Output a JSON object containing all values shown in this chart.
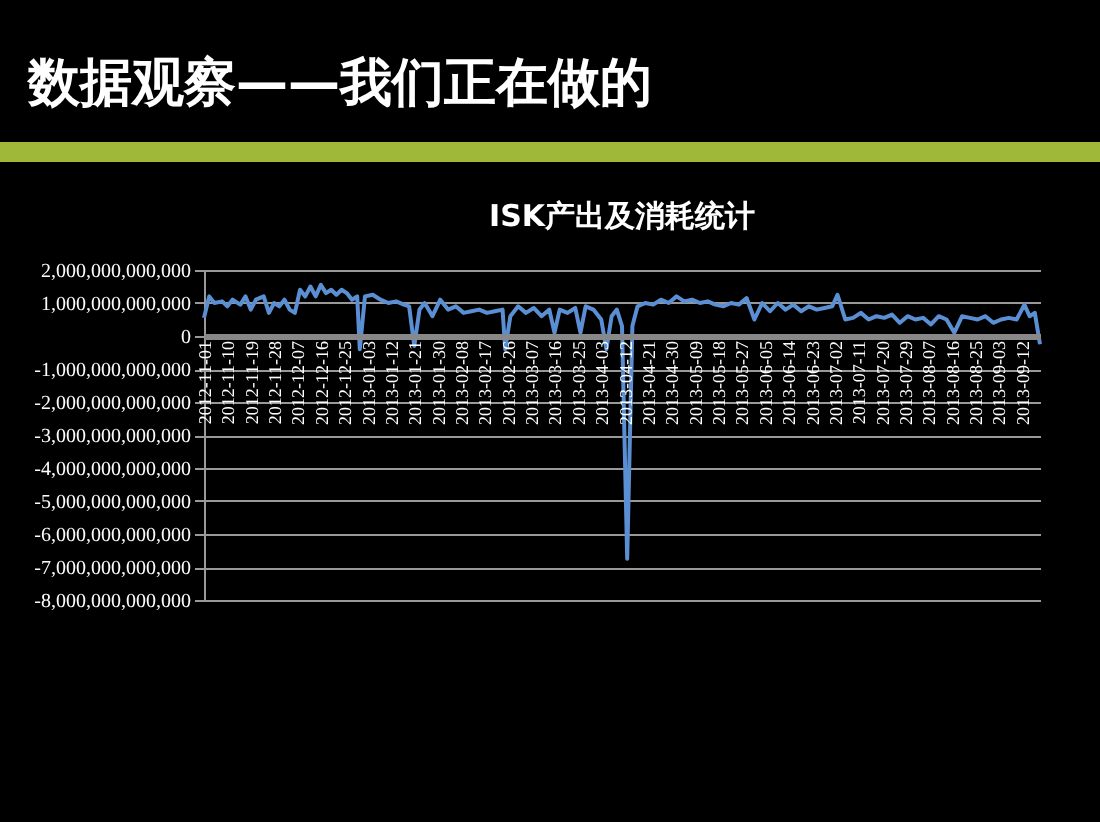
{
  "chart_data": {
    "type": "line",
    "title": "数据观察——我们正在做的",
    "subtitle": "ISK产出及消耗统计",
    "x": [
      "2012-11-01",
      "2012-11-03",
      "2012-11-05",
      "2012-11-08",
      "2012-11-10",
      "2012-11-12",
      "2012-11-15",
      "2012-11-17",
      "2012-11-19",
      "2012-11-21",
      "2012-11-24",
      "2012-11-26",
      "2012-11-28",
      "2012-11-30",
      "2012-12-02",
      "2012-12-04",
      "2012-12-06",
      "2012-12-08",
      "2012-12-10",
      "2012-12-12",
      "2012-12-14",
      "2012-12-16",
      "2012-12-18",
      "2012-12-20",
      "2012-12-22",
      "2012-12-24",
      "2012-12-26",
      "2012-12-28",
      "2012-12-30",
      "2012-12-31",
      "2013-01-02",
      "2013-01-05",
      "2013-01-08",
      "2013-01-11",
      "2013-01-14",
      "2013-01-17",
      "2013-01-19",
      "2013-01-21",
      "2013-01-23",
      "2013-01-25",
      "2013-01-28",
      "2013-01-31",
      "2013-02-03",
      "2013-02-06",
      "2013-02-09",
      "2013-02-12",
      "2013-02-15",
      "2013-02-18",
      "2013-02-21",
      "2013-02-24",
      "2013-02-25",
      "2013-02-27",
      "2013-03-02",
      "2013-03-05",
      "2013-03-08",
      "2013-03-11",
      "2013-03-14",
      "2013-03-16",
      "2013-03-18",
      "2013-03-21",
      "2013-03-24",
      "2013-03-26",
      "2013-03-28",
      "2013-03-31",
      "2013-04-03",
      "2013-04-05",
      "2013-04-07",
      "2013-04-09",
      "2013-04-11",
      "2013-04-13",
      "2013-04-15",
      "2013-04-17",
      "2013-04-20",
      "2013-04-23",
      "2013-04-26",
      "2013-04-29",
      "2013-05-02",
      "2013-05-05",
      "2013-05-08",
      "2013-05-11",
      "2013-05-14",
      "2013-05-17",
      "2013-05-20",
      "2013-05-23",
      "2013-05-26",
      "2013-05-29",
      "2013-06-01",
      "2013-06-04",
      "2013-06-07",
      "2013-06-10",
      "2013-06-13",
      "2013-06-16",
      "2013-06-19",
      "2013-06-22",
      "2013-06-25",
      "2013-06-28",
      "2013-07-01",
      "2013-07-03",
      "2013-07-06",
      "2013-07-09",
      "2013-07-12",
      "2013-07-15",
      "2013-07-18",
      "2013-07-21",
      "2013-07-24",
      "2013-07-27",
      "2013-07-30",
      "2013-08-02",
      "2013-08-05",
      "2013-08-08",
      "2013-08-11",
      "2013-08-14",
      "2013-08-17",
      "2013-08-20",
      "2013-08-23",
      "2013-08-26",
      "2013-08-29",
      "2013-09-01",
      "2013-09-04",
      "2013-09-07",
      "2013-09-10",
      "2013-09-13",
      "2013-09-15",
      "2013-09-17",
      "2013-09-19"
    ],
    "series": [
      {
        "color": "#5b8fd3",
        "values": [
          550000000000.0,
          1200000000000.0,
          1000000000000.0,
          1050000000000.0,
          900000000000.0,
          1100000000000.0,
          950000000000.0,
          1200000000000.0,
          800000000000.0,
          1100000000000.0,
          1200000000000.0,
          700000000000.0,
          1000000000000.0,
          900000000000.0,
          1100000000000.0,
          800000000000.0,
          700000000000.0,
          1400000000000.0,
          1200000000000.0,
          1500000000000.0,
          1200000000000.0,
          1550000000000.0,
          1300000000000.0,
          1400000000000.0,
          1250000000000.0,
          1400000000000.0,
          1300000000000.0,
          1100000000000.0,
          1200000000000.0,
          -400000000000.0,
          1200000000000.0,
          1250000000000.0,
          1100000000000.0,
          1000000000000.0,
          1050000000000.0,
          950000000000.0,
          900000000000.0,
          -300000000000.0,
          800000000000.0,
          1000000000000.0,
          600000000000.0,
          1100000000000.0,
          800000000000.0,
          900000000000.0,
          700000000000.0,
          750000000000.0,
          800000000000.0,
          700000000000.0,
          750000000000.0,
          800000000000.0,
          -400000000000.0,
          600000000000.0,
          900000000000.0,
          700000000000.0,
          850000000000.0,
          600000000000.0,
          800000000000.0,
          100000000000.0,
          800000000000.0,
          700000000000.0,
          850000000000.0,
          100000000000.0,
          900000000000.0,
          800000000000.0,
          500000000000.0,
          -400000000000.0,
          600000000000.0,
          800000000000.0,
          300000000000.0,
          -6750000000000.0,
          300000000000.0,
          900000000000.0,
          1000000000000.0,
          950000000000.0,
          1100000000000.0,
          1000000000000.0,
          1200000000000.0,
          1050000000000.0,
          1100000000000.0,
          1000000000000.0,
          1050000000000.0,
          950000000000.0,
          900000000000.0,
          1000000000000.0,
          950000000000.0,
          1150000000000.0,
          500000000000.0,
          1000000000000.0,
          750000000000.0,
          1000000000000.0,
          800000000000.0,
          950000000000.0,
          750000000000.0,
          900000000000.0,
          800000000000.0,
          850000000000.0,
          900000000000.0,
          1250000000000.0,
          500000000000.0,
          550000000000.0,
          700000000000.0,
          500000000000.0,
          600000000000.0,
          550000000000.0,
          650000000000.0,
          400000000000.0,
          600000000000.0,
          500000000000.0,
          550000000000.0,
          350000000000.0,
          600000000000.0,
          500000000000.0,
          100000000000.0,
          600000000000.0,
          550000000000.0,
          500000000000.0,
          600000000000.0,
          400000000000.0,
          500000000000.0,
          550000000000.0,
          500000000000.0,
          950000000000.0,
          600000000000.0,
          700000000000.0,
          -250000000000.0
        ]
      }
    ],
    "xlim": [
      "2012-11-01",
      "2013-09-19"
    ],
    "xticks": [
      "2012-11-01",
      "2012-11-10",
      "2012-11-19",
      "2012-11-28",
      "2012-12-07",
      "2012-12-16",
      "2012-12-25",
      "2013-01-03",
      "2013-01-12",
      "2013-01-21",
      "2013-01-30",
      "2013-02-08",
      "2013-02-17",
      "2013-02-26",
      "2013-03-07",
      "2013-03-16",
      "2013-03-25",
      "2013-04-03",
      "2013-04-12",
      "2013-04-21",
      "2013-04-30",
      "2013-05-09",
      "2013-05-18",
      "2013-05-27",
      "2013-06-05",
      "2013-06-14",
      "2013-06-23",
      "2013-07-02",
      "2013-07-11",
      "2013-07-20",
      "2013-07-29",
      "2013-08-07",
      "2013-08-16",
      "2013-08-25",
      "2013-09-03",
      "2013-09-12"
    ],
    "ylim": [
      -8000000000000,
      2000000000000
    ],
    "yticks": [
      {
        "value": -8000000000000,
        "label": "-8,000,000,000,000"
      },
      {
        "value": -7000000000000,
        "label": "-7,000,000,000,000"
      },
      {
        "value": -6000000000000,
        "label": "-6,000,000,000,000"
      },
      {
        "value": -5000000000000,
        "label": "-5,000,000,000,000"
      },
      {
        "value": -4000000000000,
        "label": "-4,000,000,000,000"
      },
      {
        "value": -3000000000000,
        "label": "-3,000,000,000,000"
      },
      {
        "value": -2000000000000,
        "label": "-2,000,000,000,000"
      },
      {
        "value": -1000000000000,
        "label": "-1,000,000,000,000"
      },
      0,
      {
        "value": 1000000000000,
        "label": "1,000,000,000,000"
      },
      {
        "value": 2000000000000,
        "label": "2,000,000,000,000"
      }
    ],
    "grid": "y",
    "legend": false,
    "marker": "none",
    "line_style": "solid"
  }
}
